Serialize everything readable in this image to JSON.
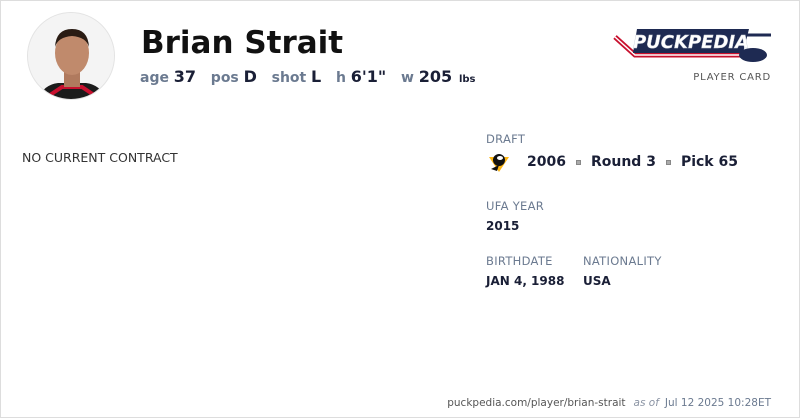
{
  "player": {
    "name": "Brian Strait",
    "stats": [
      {
        "key": "age",
        "value": "37"
      },
      {
        "key": "pos",
        "value": "D"
      },
      {
        "key": "shot",
        "value": "L"
      },
      {
        "key": "h",
        "value": "6'1\""
      },
      {
        "key": "w",
        "value": "205",
        "unit": "lbs"
      }
    ]
  },
  "brand": {
    "logo_text": "PuckPedia",
    "card_label": "PLAYER CARD"
  },
  "contract_status": "NO CURRENT CONTRACT",
  "draft": {
    "label": "DRAFT",
    "team_icon": "penguins-logo-icon",
    "year": "2006",
    "round": "Round 3",
    "pick": "Pick 65"
  },
  "ufa": {
    "label": "UFA YEAR",
    "value": "2015"
  },
  "birthdate": {
    "label": "BIRTHDATE",
    "value": "JAN 4, 1988"
  },
  "nationality": {
    "label": "NATIONALITY",
    "value": "USA"
  },
  "footer": {
    "url": "puckpedia.com/player/brian-strait",
    "as_of": "as of",
    "timestamp": "Jul 12 2025 10:28ET"
  }
}
